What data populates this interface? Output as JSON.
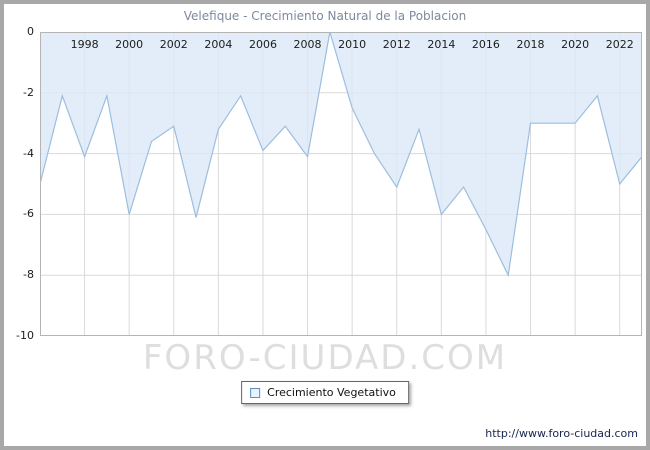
{
  "window": {
    "title": "Velefique - Crecimiento Natural de la Poblacion"
  },
  "chart_data": {
    "type": "area",
    "title": "Velefique - Crecimiento Natural de la Poblacion",
    "x": [
      1996,
      1997,
      1998,
      1999,
      2000,
      2001,
      2002,
      2003,
      2004,
      2005,
      2006,
      2007,
      2008,
      2009,
      2010,
      2011,
      2012,
      2013,
      2014,
      2015,
      2016,
      2017,
      2018,
      2019,
      2020,
      2021,
      2022,
      2023
    ],
    "values": [
      -5.0,
      -2.1,
      -4.1,
      -2.1,
      -6.0,
      -3.6,
      -3.1,
      -6.1,
      -3.2,
      -2.1,
      -3.9,
      -3.1,
      -4.1,
      0.0,
      -2.5,
      -4.0,
      -5.1,
      -3.2,
      -6.0,
      -5.1,
      -6.5,
      -8.0,
      -3.0,
      -3.0,
      -3.0,
      -2.1,
      -5.0,
      -4.1
    ],
    "xlabel": "",
    "ylabel": "",
    "ylim": [
      -10,
      0
    ],
    "yticks": [
      0,
      -2,
      -4,
      -6,
      -8,
      -10
    ],
    "xticks": [
      1998,
      2000,
      2002,
      2004,
      2006,
      2008,
      2010,
      2012,
      2014,
      2016,
      2018,
      2020,
      2022
    ],
    "grid": true,
    "legend": [
      "Crecimiento Vegetativo"
    ],
    "legend_position": "bottom-center",
    "colors": {
      "line": "#9cbede",
      "fill": "#dce9f8",
      "grid": "#d9d9d9",
      "plot_border": "#b4b4b4",
      "title_text": "#7b8a9c",
      "tick_text": "#1c1c1c"
    }
  },
  "watermark": "FORO-CIUDAD.COM",
  "footer": {
    "url": "http://www.foro-ciudad.com"
  }
}
